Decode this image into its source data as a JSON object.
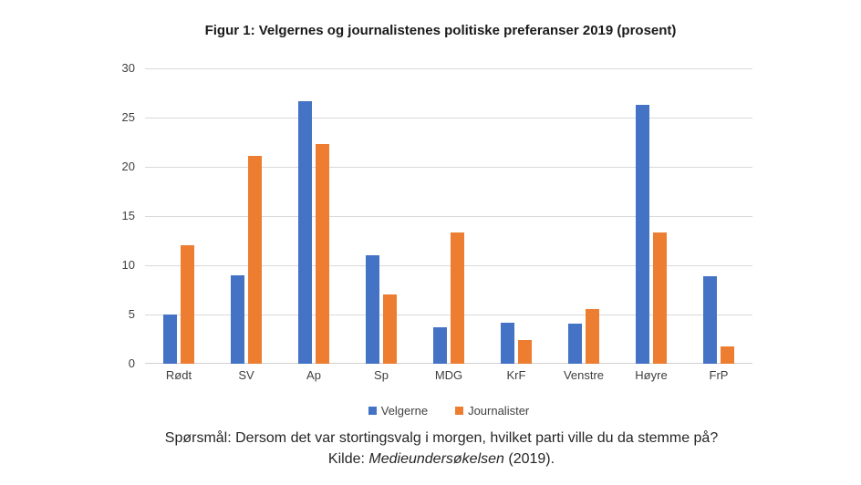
{
  "title": "Figur 1: Velgernes og journalistenes politiske preferanser 2019 (prosent)",
  "chart_data": {
    "type": "bar",
    "title": "Figur 1: Velgernes og journalistenes politiske preferanser 2019 (prosent)",
    "categories": [
      "Rødt",
      "SV",
      "Ap",
      "Sp",
      "MDG",
      "KrF",
      "Venstre",
      "Høyre",
      "FrP"
    ],
    "series": [
      {
        "name": "Velgerne",
        "color": "#4472C4",
        "values": [
          5.0,
          9.0,
          26.7,
          11.0,
          3.7,
          4.2,
          4.1,
          26.3,
          8.9
        ]
      },
      {
        "name": "Journalister",
        "color": "#ED7D31",
        "values": [
          12.0,
          21.1,
          22.3,
          7.0,
          13.3,
          2.4,
          5.6,
          13.3,
          1.8
        ]
      }
    ],
    "xlabel": "",
    "ylabel": "",
    "ylim": [
      0,
      30
    ],
    "yticks": [
      0,
      5,
      10,
      15,
      20,
      25,
      30
    ],
    "grid": true,
    "gridline_color": "#d9d9d9",
    "legend_position": "bottom"
  },
  "footer": {
    "question": "Spørsmål: Dersom det var stortingsvalg i morgen, hvilket parti ville du da stemme på?",
    "source_prefix": "Kilde: ",
    "source_italic": "Medieundersøkelsen",
    "source_suffix": " (2019)."
  }
}
